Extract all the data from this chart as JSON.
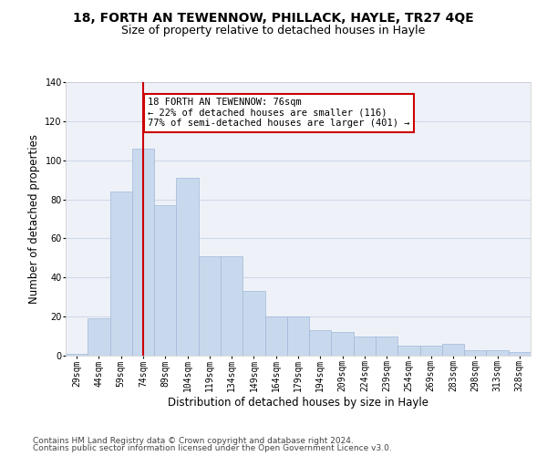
{
  "title": "18, FORTH AN TEWENNOW, PHILLACK, HAYLE, TR27 4QE",
  "subtitle": "Size of property relative to detached houses in Hayle",
  "xlabel": "Distribution of detached houses by size in Hayle",
  "ylabel": "Number of detached properties",
  "categories": [
    "29sqm",
    "44sqm",
    "59sqm",
    "74sqm",
    "89sqm",
    "104sqm",
    "119sqm",
    "134sqm",
    "149sqm",
    "164sqm",
    "179sqm",
    "194sqm",
    "209sqm",
    "224sqm",
    "239sqm",
    "254sqm",
    "269sqm",
    "283sqm",
    "298sqm",
    "313sqm",
    "328sqm"
  ],
  "values": [
    1,
    19,
    84,
    106,
    77,
    91,
    51,
    51,
    33,
    20,
    20,
    13,
    12,
    10,
    10,
    5,
    5,
    6,
    3,
    3,
    2
  ],
  "bar_color": "#c9d9ed",
  "bar_edgecolor": "#a0b8d8",
  "grid_color": "#d0d8e8",
  "background_color": "#eef2f8",
  "vline_x": 3,
  "vline_color": "#cc0000",
  "annotation_text": "18 FORTH AN TEWENNOW: 76sqm\n← 22% of detached houses are smaller (116)\n77% of semi-detached houses are larger (401) →",
  "annotation_box_color": "#ffffff",
  "annotation_box_edgecolor": "#cc0000",
  "ylim": [
    0,
    140
  ],
  "yticks": [
    0,
    20,
    40,
    60,
    80,
    100,
    120,
    140
  ],
  "footer_line1": "Contains HM Land Registry data © Crown copyright and database right 2024.",
  "footer_line2": "Contains public sector information licensed under the Open Government Licence v3.0.",
  "title_fontsize": 10,
  "subtitle_fontsize": 9,
  "tick_fontsize": 7,
  "ylabel_fontsize": 8.5,
  "xlabel_fontsize": 8.5,
  "annotation_fontsize": 7.5,
  "footer_fontsize": 6.5
}
